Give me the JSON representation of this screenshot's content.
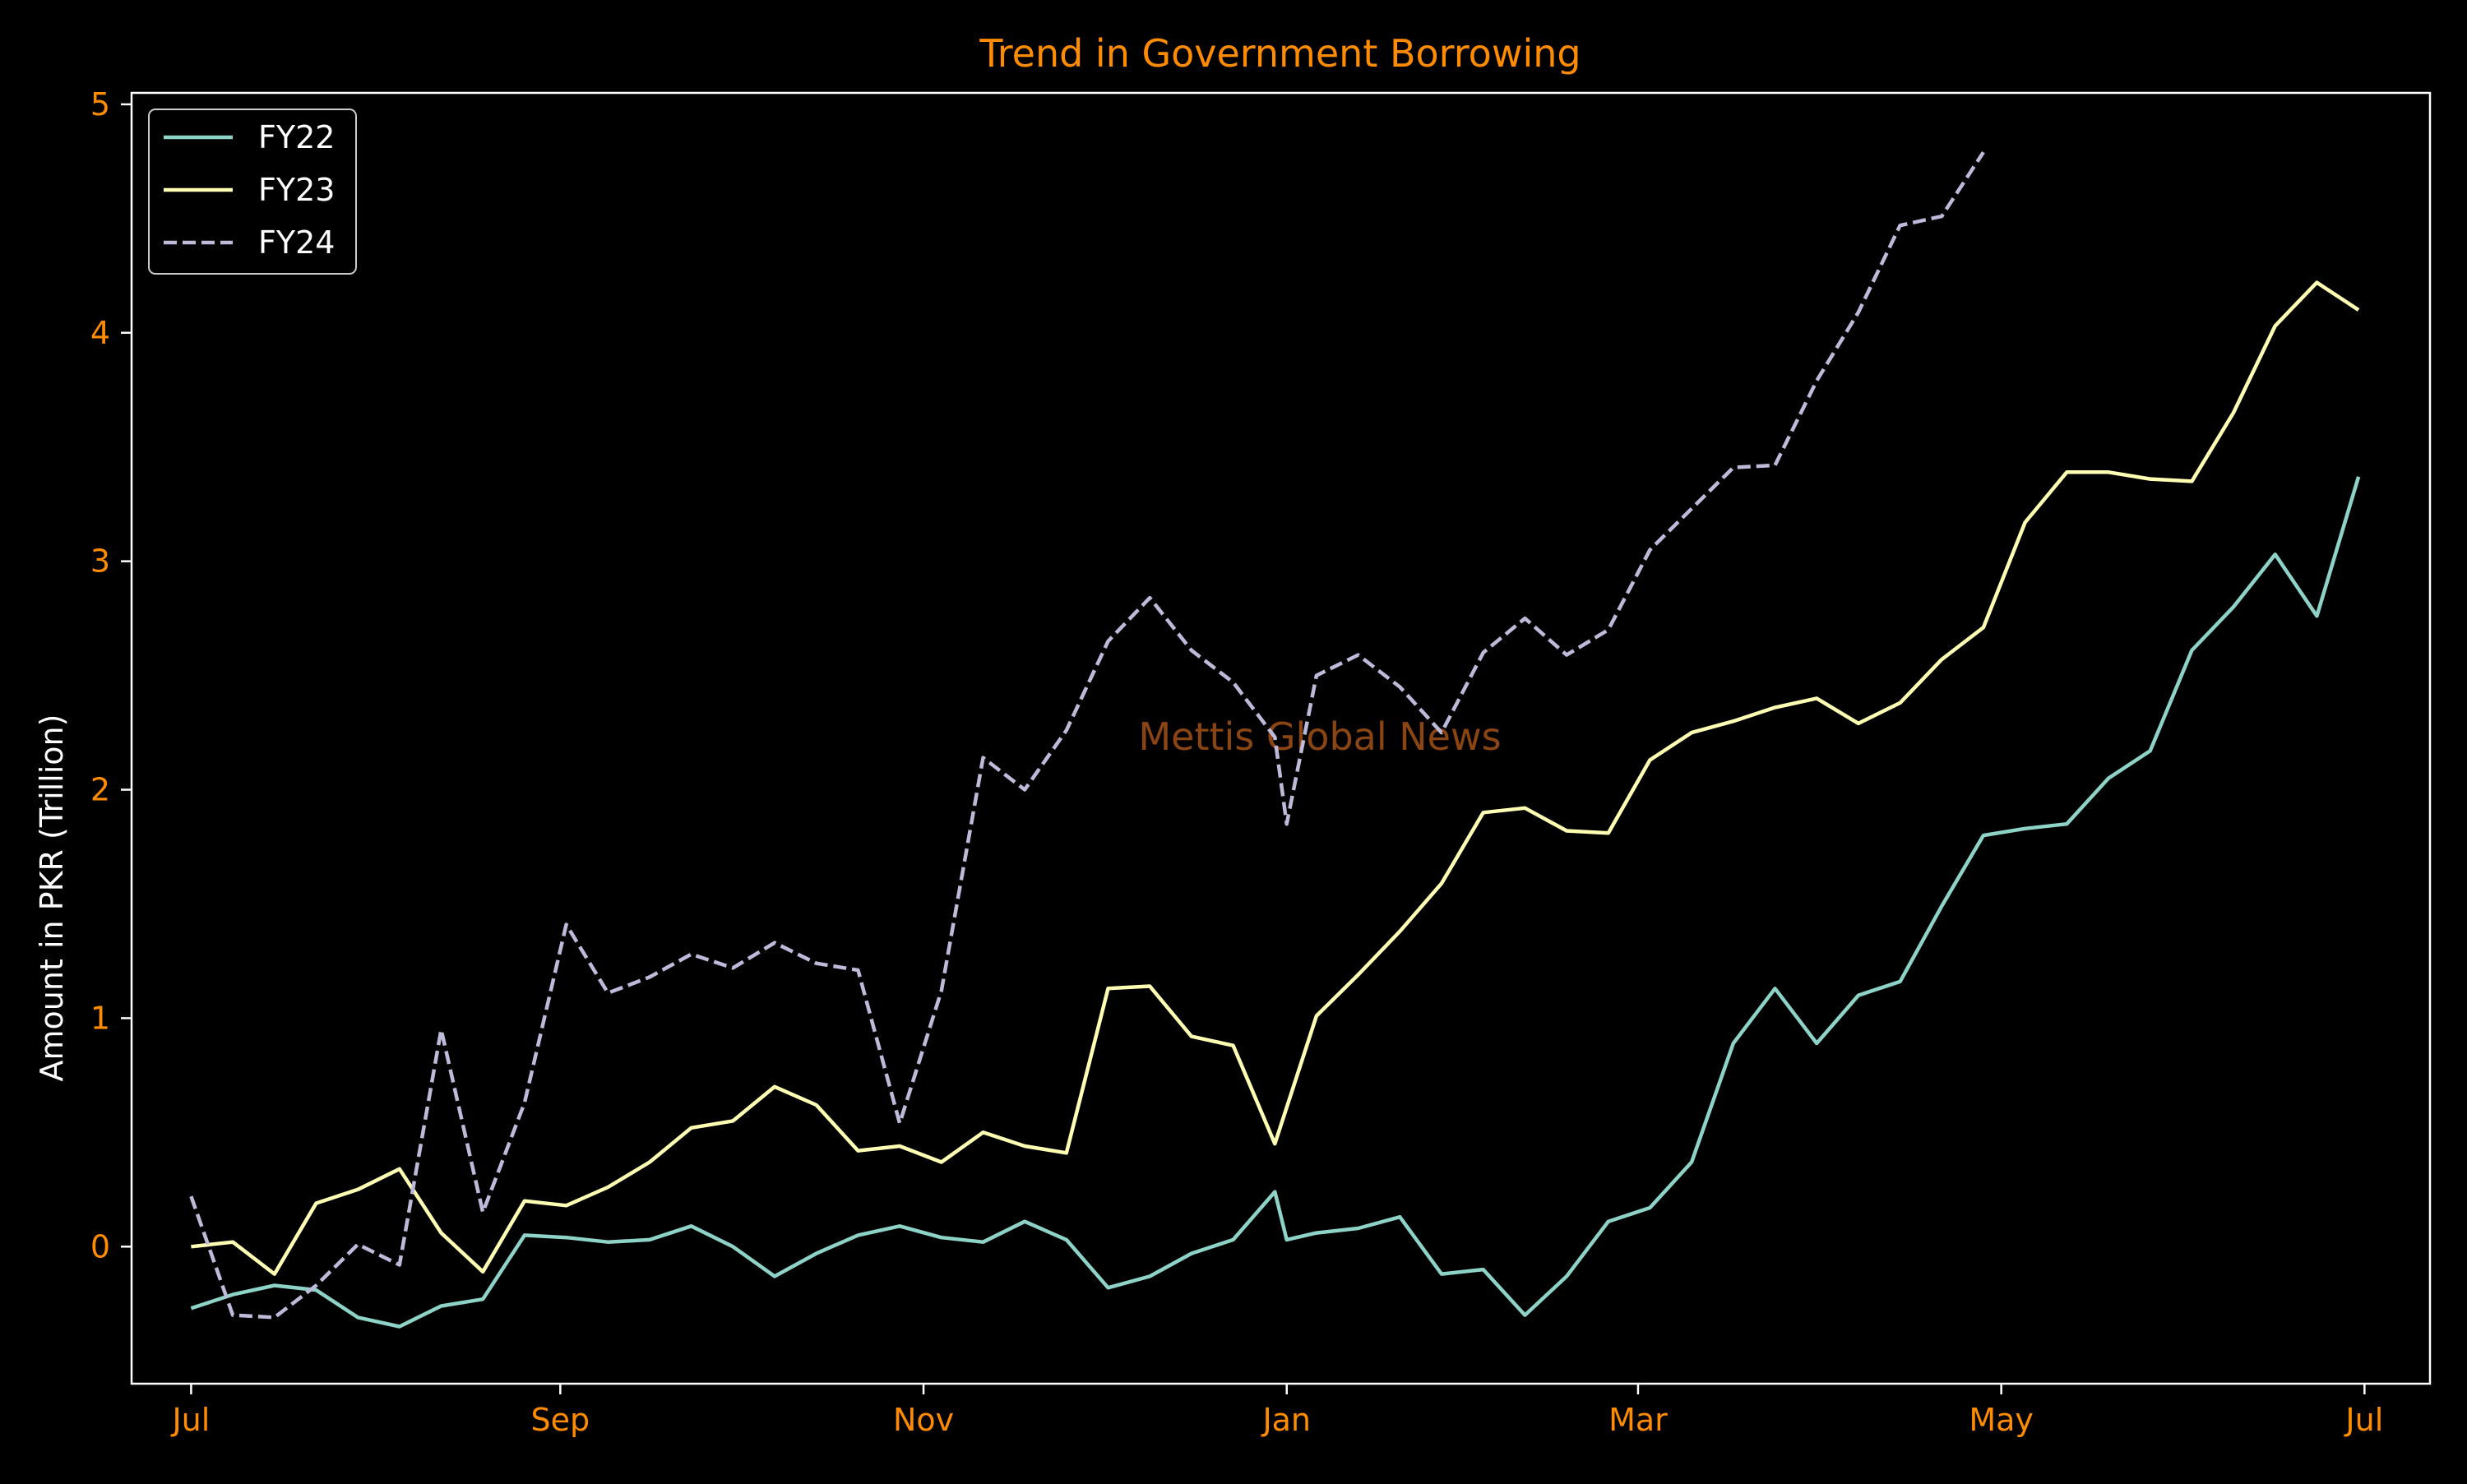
{
  "chart_data": {
    "type": "line",
    "title": "Trend in Government Borrowing",
    "xlabel": "",
    "ylabel": "Amount in PKR (Trillion)",
    "watermark": "Mettis Global News",
    "x_axis": {
      "type": "date",
      "range": [
        "2021-06-21",
        "2022-07-12"
      ],
      "ticks": [
        {
          "label": "Jul",
          "date": "2021-07-01"
        },
        {
          "label": "Sep",
          "date": "2021-09-01"
        },
        {
          "label": "Nov",
          "date": "2021-11-01"
        },
        {
          "label": "Jan",
          "date": "2022-01-01"
        },
        {
          "label": "Mar",
          "date": "2022-03-01"
        },
        {
          "label": "May",
          "date": "2022-05-01"
        },
        {
          "label": "Jul",
          "date": "2022-07-01"
        }
      ]
    },
    "ylim": [
      -0.6,
      5.05
    ],
    "yticks": [
      0,
      1,
      2,
      3,
      4,
      5
    ],
    "grid": false,
    "legend_position": "top-left",
    "colors": {
      "background": "#000000",
      "axes_frame": "#ffffff",
      "title": "#ff8c00",
      "tick_labels": "#ff8c00",
      "ylabel": "#ffffff",
      "legend_text": "#ffffff",
      "watermark": "#8b4513"
    },
    "series": [
      {
        "name": "FY22",
        "color": "#8dd3c7",
        "dash": "solid",
        "points": [
          [
            "2021-07-01",
            -0.27
          ],
          [
            "2021-07-08",
            -0.21
          ],
          [
            "2021-07-15",
            -0.17
          ],
          [
            "2021-07-22",
            -0.19
          ],
          [
            "2021-07-29",
            -0.31
          ],
          [
            "2021-08-05",
            -0.35
          ],
          [
            "2021-08-12",
            -0.26
          ],
          [
            "2021-08-19",
            -0.23
          ],
          [
            "2021-08-26",
            0.05
          ],
          [
            "2021-09-02",
            0.04
          ],
          [
            "2021-09-09",
            0.02
          ],
          [
            "2021-09-16",
            0.03
          ],
          [
            "2021-09-23",
            0.09
          ],
          [
            "2021-09-30",
            0.0
          ],
          [
            "2021-10-07",
            -0.13
          ],
          [
            "2021-10-14",
            -0.03
          ],
          [
            "2021-10-21",
            0.05
          ],
          [
            "2021-10-28",
            0.09
          ],
          [
            "2021-11-04",
            0.04
          ],
          [
            "2021-11-11",
            0.02
          ],
          [
            "2021-11-18",
            0.11
          ],
          [
            "2021-11-25",
            0.03
          ],
          [
            "2021-12-02",
            -0.18
          ],
          [
            "2021-12-09",
            -0.13
          ],
          [
            "2021-12-16",
            -0.03
          ],
          [
            "2021-12-23",
            0.03
          ],
          [
            "2021-12-30",
            0.24
          ],
          [
            "2022-01-01",
            0.03
          ],
          [
            "2022-01-06",
            0.06
          ],
          [
            "2022-01-13",
            0.08
          ],
          [
            "2022-01-20",
            0.13
          ],
          [
            "2022-01-27",
            -0.12
          ],
          [
            "2022-02-03",
            -0.1
          ],
          [
            "2022-02-10",
            -0.3
          ],
          [
            "2022-02-17",
            -0.13
          ],
          [
            "2022-02-24",
            0.11
          ],
          [
            "2022-03-03",
            0.17
          ],
          [
            "2022-03-10",
            0.37
          ],
          [
            "2022-03-17",
            0.89
          ],
          [
            "2022-03-24",
            1.13
          ],
          [
            "2022-03-31",
            0.89
          ],
          [
            "2022-04-07",
            1.1
          ],
          [
            "2022-04-14",
            1.16
          ],
          [
            "2022-04-21",
            1.49
          ],
          [
            "2022-04-28",
            1.8
          ],
          [
            "2022-05-05",
            1.83
          ],
          [
            "2022-05-12",
            1.85
          ],
          [
            "2022-05-19",
            2.05
          ],
          [
            "2022-05-26",
            2.17
          ],
          [
            "2022-06-02",
            2.61
          ],
          [
            "2022-06-09",
            2.8
          ],
          [
            "2022-06-16",
            3.03
          ],
          [
            "2022-06-23",
            2.76
          ],
          [
            "2022-06-30",
            3.37
          ]
        ]
      },
      {
        "name": "FY23",
        "color": "#ffffb3",
        "dash": "solid",
        "points": [
          [
            "2021-07-01",
            0.0
          ],
          [
            "2021-07-08",
            0.02
          ],
          [
            "2021-07-15",
            -0.12
          ],
          [
            "2021-07-22",
            0.19
          ],
          [
            "2021-07-29",
            0.25
          ],
          [
            "2021-08-05",
            0.34
          ],
          [
            "2021-08-12",
            0.06
          ],
          [
            "2021-08-19",
            -0.11
          ],
          [
            "2021-08-26",
            0.2
          ],
          [
            "2021-09-02",
            0.18
          ],
          [
            "2021-09-09",
            0.26
          ],
          [
            "2021-09-16",
            0.37
          ],
          [
            "2021-09-23",
            0.52
          ],
          [
            "2021-09-30",
            0.55
          ],
          [
            "2021-10-07",
            0.7
          ],
          [
            "2021-10-14",
            0.62
          ],
          [
            "2021-10-21",
            0.42
          ],
          [
            "2021-10-28",
            0.44
          ],
          [
            "2021-11-04",
            0.37
          ],
          [
            "2021-11-11",
            0.5
          ],
          [
            "2021-11-18",
            0.44
          ],
          [
            "2021-11-25",
            0.41
          ],
          [
            "2021-12-02",
            1.13
          ],
          [
            "2021-12-09",
            1.14
          ],
          [
            "2021-12-16",
            0.92
          ],
          [
            "2021-12-23",
            0.88
          ],
          [
            "2021-12-30",
            0.45
          ],
          [
            "2022-01-06",
            1.01
          ],
          [
            "2022-01-13",
            1.19
          ],
          [
            "2022-01-20",
            1.38
          ],
          [
            "2022-01-27",
            1.59
          ],
          [
            "2022-02-03",
            1.9
          ],
          [
            "2022-02-10",
            1.92
          ],
          [
            "2022-02-17",
            1.82
          ],
          [
            "2022-02-24",
            1.81
          ],
          [
            "2022-03-03",
            2.13
          ],
          [
            "2022-03-10",
            2.25
          ],
          [
            "2022-03-17",
            2.3
          ],
          [
            "2022-03-24",
            2.36
          ],
          [
            "2022-03-31",
            2.4
          ],
          [
            "2022-04-07",
            2.29
          ],
          [
            "2022-04-14",
            2.38
          ],
          [
            "2022-04-21",
            2.57
          ],
          [
            "2022-04-28",
            2.71
          ],
          [
            "2022-05-05",
            3.17
          ],
          [
            "2022-05-12",
            3.39
          ],
          [
            "2022-05-19",
            3.39
          ],
          [
            "2022-05-26",
            3.36
          ],
          [
            "2022-06-02",
            3.35
          ],
          [
            "2022-06-09",
            3.65
          ],
          [
            "2022-06-16",
            4.03
          ],
          [
            "2022-06-23",
            4.22
          ],
          [
            "2022-06-30",
            4.1
          ]
        ]
      },
      {
        "name": "FY24",
        "color": "#bebada",
        "dash": "dashed",
        "points": [
          [
            "2021-07-01",
            0.22
          ],
          [
            "2021-07-08",
            -0.3
          ],
          [
            "2021-07-15",
            -0.31
          ],
          [
            "2021-07-22",
            -0.17
          ],
          [
            "2021-07-29",
            0.01
          ],
          [
            "2021-08-05",
            -0.08
          ],
          [
            "2021-08-12",
            0.95
          ],
          [
            "2021-08-19",
            0.15
          ],
          [
            "2021-08-26",
            0.63
          ],
          [
            "2021-09-02",
            1.41
          ],
          [
            "2021-09-09",
            1.11
          ],
          [
            "2021-09-16",
            1.18
          ],
          [
            "2021-09-23",
            1.28
          ],
          [
            "2021-09-30",
            1.22
          ],
          [
            "2021-10-07",
            1.33
          ],
          [
            "2021-10-14",
            1.24
          ],
          [
            "2021-10-21",
            1.21
          ],
          [
            "2021-10-28",
            0.54
          ],
          [
            "2021-11-04",
            1.12
          ],
          [
            "2021-11-11",
            2.14
          ],
          [
            "2021-11-18",
            2.0
          ],
          [
            "2021-11-25",
            2.26
          ],
          [
            "2021-12-02",
            2.65
          ],
          [
            "2021-12-09",
            2.84
          ],
          [
            "2021-12-16",
            2.61
          ],
          [
            "2021-12-23",
            2.47
          ],
          [
            "2021-12-30",
            2.23
          ],
          [
            "2022-01-01",
            1.85
          ],
          [
            "2022-01-06",
            2.5
          ],
          [
            "2022-01-13",
            2.59
          ],
          [
            "2022-01-20",
            2.45
          ],
          [
            "2022-01-27",
            2.25
          ],
          [
            "2022-02-03",
            2.6
          ],
          [
            "2022-02-10",
            2.75
          ],
          [
            "2022-02-17",
            2.59
          ],
          [
            "2022-02-24",
            2.7
          ],
          [
            "2022-03-03",
            3.05
          ],
          [
            "2022-03-10",
            3.23
          ],
          [
            "2022-03-17",
            3.41
          ],
          [
            "2022-03-24",
            3.42
          ],
          [
            "2022-03-31",
            3.79
          ],
          [
            "2022-04-07",
            4.09
          ],
          [
            "2022-04-14",
            4.47
          ],
          [
            "2022-04-21",
            4.51
          ],
          [
            "2022-04-28",
            4.79
          ]
        ]
      }
    ]
  }
}
